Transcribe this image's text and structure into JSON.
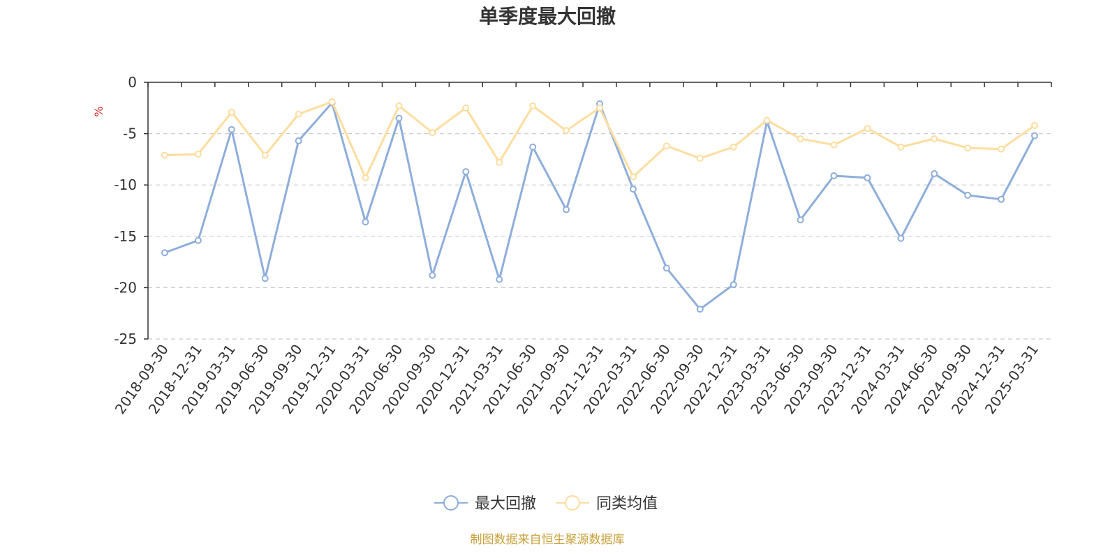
{
  "chart_data": {
    "type": "line",
    "title": "单季度最大回撤",
    "ylabel": "%",
    "xlabel": "",
    "ylim": [
      -25,
      0
    ],
    "yticks": [
      0,
      -5,
      -10,
      -15,
      -20,
      -25
    ],
    "grid": true,
    "legend_position": "bottom-center",
    "categories": [
      "2018-09-30",
      "2018-12-31",
      "2019-03-31",
      "2019-06-30",
      "2019-09-30",
      "2019-12-31",
      "2020-03-31",
      "2020-06-30",
      "2020-09-30",
      "2020-12-31",
      "2021-03-31",
      "2021-06-30",
      "2021-09-30",
      "2021-12-31",
      "2022-03-31",
      "2022-06-30",
      "2022-09-30",
      "2022-12-31",
      "2023-03-31",
      "2023-06-30",
      "2023-09-30",
      "2023-12-31",
      "2024-03-31",
      "2024-06-30",
      "2024-09-30",
      "2024-12-31",
      "2025-03-31"
    ],
    "series": [
      {
        "name": "最大回撤",
        "color": "#8eaedb",
        "values": [
          -16.6,
          -15.4,
          -4.6,
          -19.1,
          -5.7,
          -2.0,
          -13.6,
          -3.5,
          -18.8,
          -8.7,
          -19.2,
          -6.3,
          -12.4,
          -2.1,
          -10.4,
          -18.1,
          -22.1,
          -19.7,
          -3.8,
          -13.4,
          -9.1,
          -9.3,
          -15.2,
          -8.9,
          -11.0,
          -11.4,
          -5.2
        ]
      },
      {
        "name": "同类均值",
        "color": "#fddd9f",
        "values": [
          -7.1,
          -7.0,
          -2.9,
          -7.1,
          -3.1,
          -1.9,
          -9.3,
          -2.3,
          -4.9,
          -2.5,
          -7.8,
          -2.3,
          -4.7,
          -2.5,
          -9.2,
          -6.2,
          -7.4,
          -6.3,
          -3.7,
          -5.5,
          -6.1,
          -4.5,
          -6.3,
          -5.5,
          -6.4,
          -6.5,
          -4.2
        ]
      }
    ],
    "source": "制图数据来自恒生聚源数据库",
    "source_color": "#c9a13b",
    "unit_color": "#e02b2b"
  }
}
